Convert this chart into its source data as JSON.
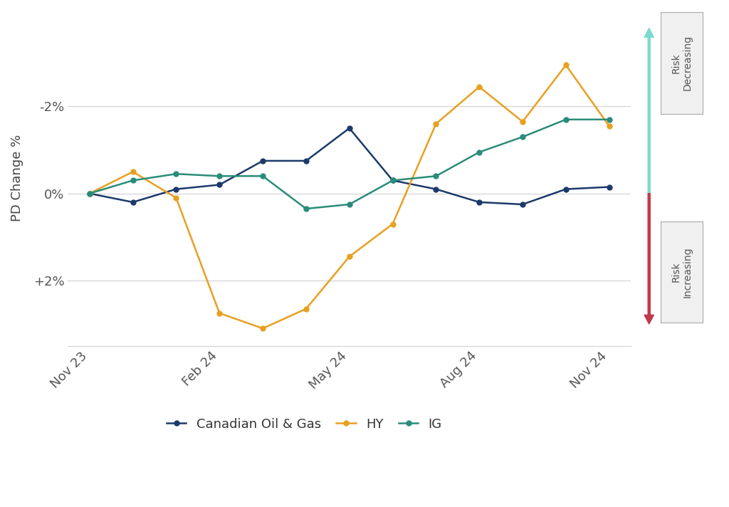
{
  "ylabel": "PD Change %",
  "background_color": "#ffffff",
  "x_tick_labels": [
    "Nov 23",
    "Feb 24",
    "May 24",
    "Aug 24",
    "Nov 24"
  ],
  "x_tick_positions": [
    0,
    3,
    6,
    9,
    12
  ],
  "canadian_og": [
    0.0,
    0.2,
    -0.1,
    -0.2,
    -0.75,
    -0.75,
    -1.5,
    -0.3,
    -0.1,
    0.2,
    0.25,
    -0.1,
    -0.15
  ],
  "hy": [
    0.0,
    -0.5,
    0.1,
    2.75,
    3.1,
    2.65,
    1.45,
    0.7,
    -1.6,
    -2.45,
    -1.65,
    -2.95,
    -1.55
  ],
  "ig": [
    0.0,
    -0.3,
    -0.45,
    -0.4,
    -0.4,
    0.35,
    0.25,
    -0.3,
    -0.4,
    -0.95,
    -1.3,
    -1.7,
    -1.7
  ],
  "canadian_og_color": "#1B3A6B",
  "hy_color": "#E8A020",
  "ig_color": "#2A8C7A",
  "grid_color": "#d0d0d0",
  "arrow_up_color": "#7DD8D0",
  "arrow_down_color": "#C0384B",
  "yticks": [
    2.0,
    0.0,
    -2.0
  ],
  "ytick_labels": [
    "+2%",
    "0%",
    "-2%"
  ],
  "ylim_bottom": 3.5,
  "ylim_top": -4.2,
  "risk_dec_label": "Risk\nDecreasing",
  "risk_inc_label": "Risk\nIncreasing"
}
